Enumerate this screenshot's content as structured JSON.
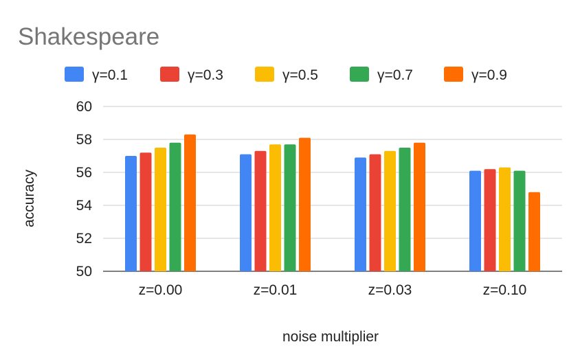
{
  "chart_data": {
    "type": "bar",
    "title": "Shakespeare",
    "xlabel": "noise multiplier",
    "ylabel": "accuracy",
    "ylim": [
      50,
      60
    ],
    "yticks": [
      50,
      52,
      54,
      56,
      58,
      60
    ],
    "categories": [
      "z=0.00",
      "z=0.01",
      "z=0.03",
      "z=0.10"
    ],
    "series": [
      {
        "name": "γ=0.1",
        "color": "#4285F4",
        "values": [
          57.0,
          57.1,
          56.9,
          56.1
        ]
      },
      {
        "name": "γ=0.3",
        "color": "#EA4335",
        "values": [
          57.2,
          57.3,
          57.1,
          56.2
        ]
      },
      {
        "name": "γ=0.5",
        "color": "#FBBC04",
        "values": [
          57.5,
          57.7,
          57.3,
          56.3
        ]
      },
      {
        "name": "γ=0.7",
        "color": "#34A853",
        "values": [
          57.8,
          57.7,
          57.5,
          56.1
        ]
      },
      {
        "name": "γ=0.9",
        "color": "#FF6D01",
        "values": [
          58.3,
          58.1,
          57.8,
          54.8
        ]
      }
    ],
    "grid": true,
    "legend_position": "top"
  }
}
